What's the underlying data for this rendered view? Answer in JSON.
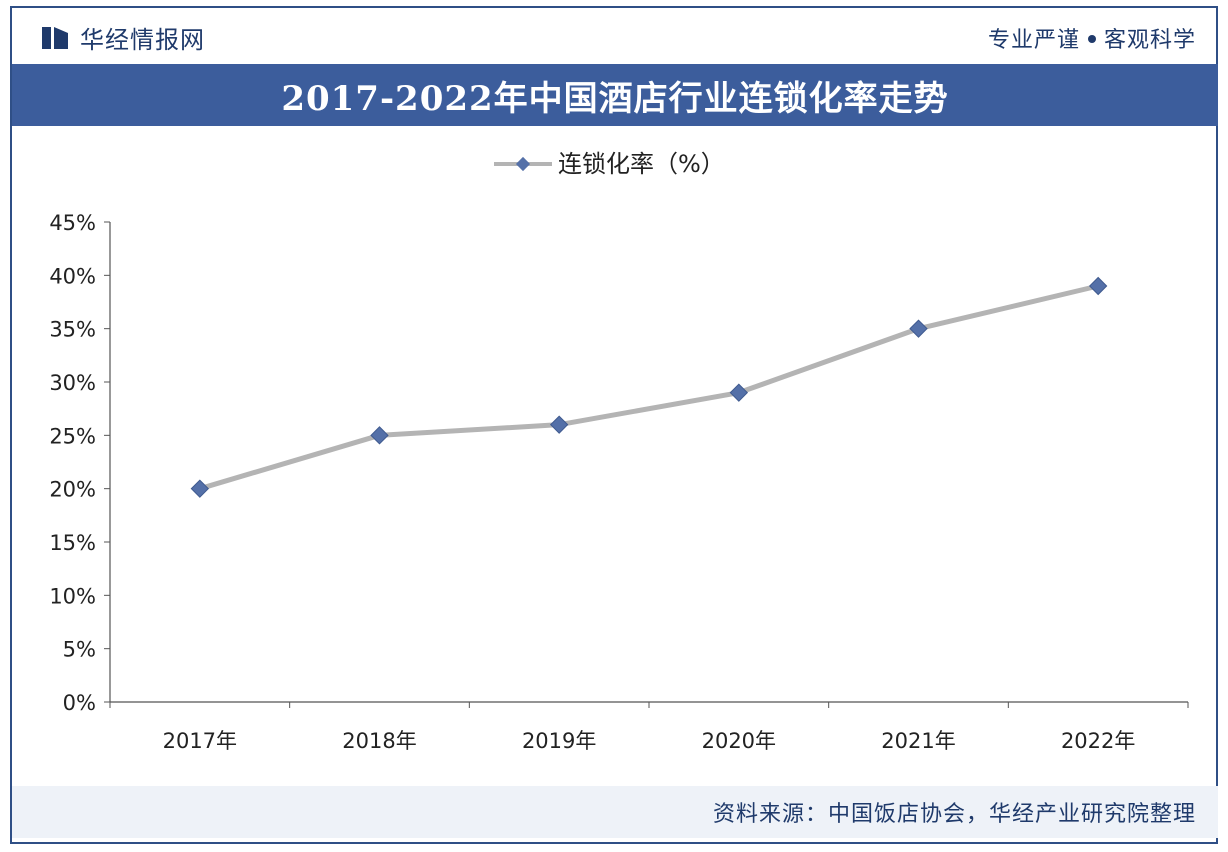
{
  "header": {
    "brand": "华经情报网",
    "slogan_left": "专业严谨",
    "slogan_right": "客观科学"
  },
  "title": "2017-2022年中国酒店行业连锁化率走势",
  "source": "资料来源：中国饭店协会，华经产业研究院整理",
  "colors": {
    "title_band": "#3c5d9c",
    "line": "#b4b4b4",
    "marker": "#5470a8"
  },
  "chart_data": {
    "type": "line",
    "categories": [
      "2017年",
      "2018年",
      "2019年",
      "2020年",
      "2021年",
      "2022年"
    ],
    "series": [
      {
        "name": "连锁化率（%）",
        "values": [
          20,
          25,
          26,
          29,
          35,
          39
        ]
      }
    ],
    "ylim": [
      0,
      45
    ],
    "yticks": [
      "0%",
      "5%",
      "10%",
      "15%",
      "20%",
      "25%",
      "30%",
      "35%",
      "40%",
      "45%"
    ],
    "legend_position": "top-center",
    "grid": false
  }
}
